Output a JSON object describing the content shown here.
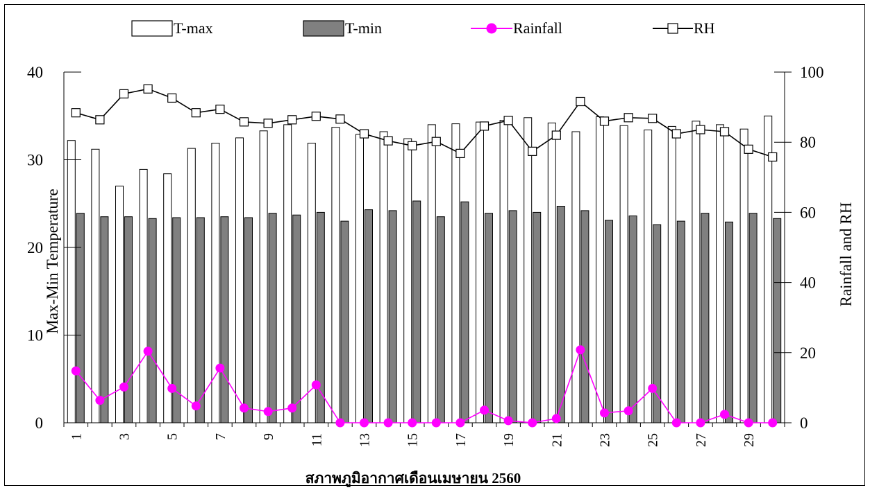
{
  "chart_data": {
    "type": "bar",
    "title": "",
    "xlabel": "สภาพภูมิอากาศเดือนเมษายน 2560",
    "ylabel_left": "Max-Min Temperature",
    "ylabel_right": "Rainfall and RH",
    "y_left_lim": [
      0,
      40
    ],
    "y_left_ticks": [
      "0",
      "10",
      "20",
      "30",
      "40"
    ],
    "y_right_lim": [
      0,
      100
    ],
    "y_right_ticks": [
      "0",
      "20",
      "40",
      "60",
      "80",
      "100"
    ],
    "x": [
      1,
      2,
      3,
      4,
      5,
      6,
      7,
      8,
      9,
      10,
      11,
      12,
      13,
      14,
      15,
      16,
      17,
      18,
      19,
      20,
      21,
      22,
      23,
      24,
      25,
      26,
      27,
      28,
      29,
      30
    ],
    "x_tick_labels": [
      "1",
      "3",
      "5",
      "7",
      "9",
      "11",
      "13",
      "15",
      "17",
      "19",
      "21",
      "23",
      "25",
      "27",
      "29"
    ],
    "legend_placement": "top",
    "grid": false,
    "series": [
      {
        "name": "T-max",
        "kind": "bar",
        "axis": "left",
        "color": "#ffffff",
        "values": [
          32.2,
          31.2,
          27.0,
          28.9,
          28.4,
          31.3,
          31.9,
          32.5,
          33.3,
          34.0,
          31.9,
          33.7,
          32.9,
          33.2,
          32.4,
          34.0,
          34.1,
          34.3,
          34.5,
          34.8,
          34.2,
          33.2,
          34.9,
          33.9,
          33.4,
          33.8,
          34.4,
          34.0,
          33.5,
          35.0
        ]
      },
      {
        "name": "T-min",
        "kind": "bar",
        "axis": "left",
        "color": "#808080",
        "values": [
          23.9,
          23.5,
          23.5,
          23.3,
          23.4,
          23.4,
          23.5,
          23.4,
          23.9,
          23.7,
          24.0,
          23.0,
          24.3,
          24.2,
          25.3,
          23.5,
          25.2,
          23.9,
          24.2,
          24.0,
          24.7,
          24.2,
          23.1,
          23.6,
          22.6,
          23.0,
          23.9,
          22.9,
          23.9,
          23.3
        ]
      },
      {
        "name": "Rainfall",
        "kind": "line",
        "axis": "right",
        "color": "#ff00ff",
        "marker": "circle",
        "values": [
          14.8,
          6.4,
          10.2,
          20.4,
          9.8,
          4.8,
          15.6,
          4.2,
          3.2,
          4.2,
          10.8,
          0,
          0,
          0,
          0,
          0,
          0,
          3.6,
          0.6,
          0,
          1.2,
          20.8,
          2.8,
          3.4,
          9.8,
          0,
          0,
          2.4,
          0,
          0
        ]
      },
      {
        "name": "RH",
        "kind": "line",
        "axis": "right",
        "color": "#000000",
        "marker": "square",
        "values": [
          88.4,
          86.4,
          93.8,
          95.2,
          92.6,
          88.4,
          89.4,
          85.8,
          85.4,
          86.4,
          87.4,
          86.6,
          82.4,
          80.4,
          79.0,
          80.2,
          76.8,
          84.6,
          86.2,
          77.4,
          82.0,
          91.6,
          86.0,
          87.0,
          86.8,
          82.4,
          83.6,
          83.0,
          78.0,
          75.8
        ]
      }
    ]
  }
}
